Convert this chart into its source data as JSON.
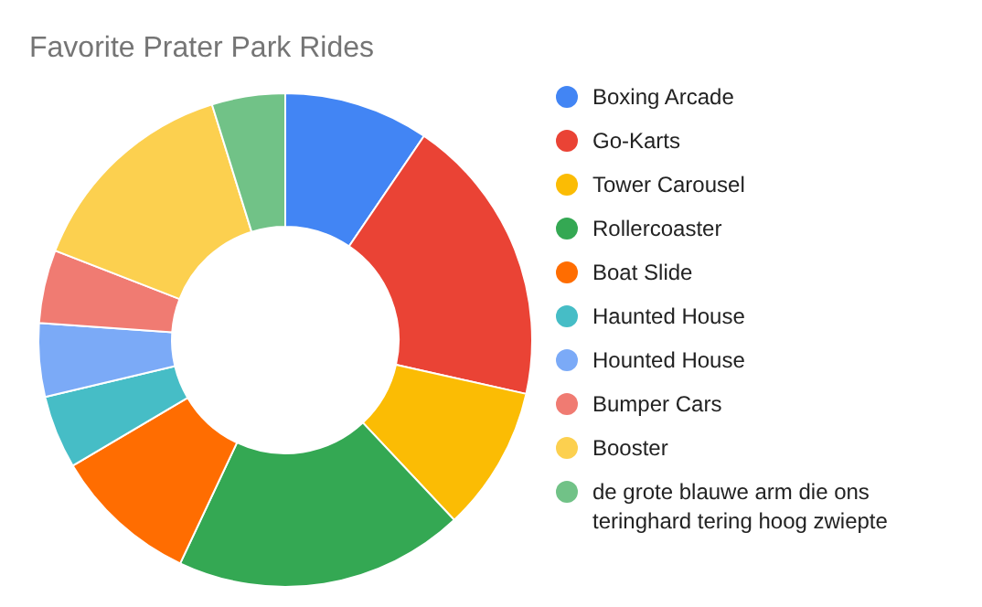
{
  "chart_data": {
    "type": "donut",
    "title": "Favorite Prater Park Rides",
    "categories": [
      "Boxing Arcade",
      "Go-Karts",
      "Tower Carousel",
      "Rollercoaster",
      "Boat Slide",
      "Haunted House",
      "Hounted House",
      "Bumper Cars",
      "Booster",
      "de grote blauwe arm die ons teringhard tering hoog zwiepte"
    ],
    "values": [
      9.5,
      19,
      9.5,
      19,
      9.5,
      4.8,
      4.8,
      4.8,
      14.3,
      4.8
    ],
    "colors": [
      "#4285f4",
      "#ea4335",
      "#fbbc04",
      "#34a853",
      "#ff6d01",
      "#46bdc6",
      "#7baaf7",
      "#f07b72",
      "#fcd04f",
      "#71c287"
    ],
    "legend": "right"
  }
}
